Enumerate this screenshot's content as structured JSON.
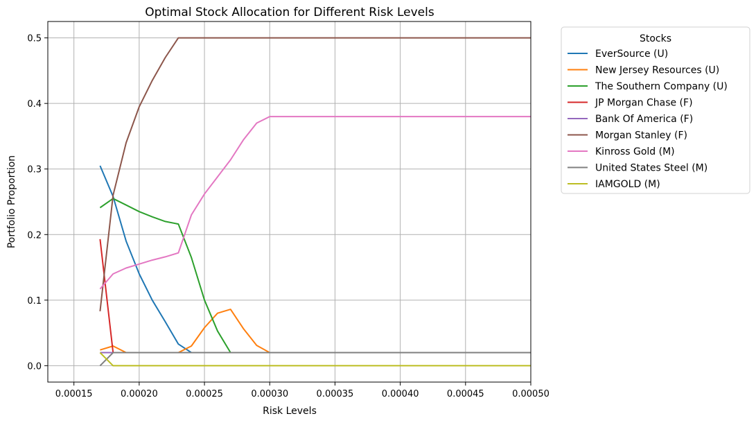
{
  "chart_data": {
    "type": "line",
    "title": "Optimal Stock Allocation for Different Risk Levels",
    "xlabel": "Risk Levels",
    "ylabel": "Portfolio Proportion",
    "xlim": [
      0.00013,
      0.0005
    ],
    "ylim": [
      -0.025,
      0.525
    ],
    "xticks": [
      0.00015,
      0.0002,
      0.00025,
      0.0003,
      0.00035,
      0.0004,
      0.00045,
      0.0005
    ],
    "xtick_labels": [
      "0.00015",
      "0.00020",
      "0.00025",
      "0.00030",
      "0.00035",
      "0.00040",
      "0.00045",
      "0.00050"
    ],
    "yticks": [
      0.0,
      0.1,
      0.2,
      0.3,
      0.4,
      0.5
    ],
    "ytick_labels": [
      "0.0",
      "0.1",
      "0.2",
      "0.3",
      "0.4",
      "0.5"
    ],
    "grid": true,
    "legend_title": "Stocks",
    "legend_position": "outside-right",
    "series": [
      {
        "name": "EverSource (U)",
        "color": "#1f77b4",
        "x": [
          0.00017,
          0.00018,
          0.00019,
          0.0002,
          0.00021,
          0.00022,
          0.00023,
          0.00024,
          0.0005
        ],
        "y": [
          0.305,
          0.258,
          0.19,
          0.14,
          0.1,
          0.067,
          0.033,
          0.02,
          0.02
        ]
      },
      {
        "name": "New Jersey Resources (U)",
        "color": "#ff7f0e",
        "x": [
          0.00017,
          0.00018,
          0.00019,
          0.0002,
          0.00021,
          0.00022,
          0.00023,
          0.00024,
          0.00025,
          0.00026,
          0.00027,
          0.00028,
          0.00029,
          0.0003,
          0.0005
        ],
        "y": [
          0.024,
          0.03,
          0.02,
          0.02,
          0.02,
          0.02,
          0.02,
          0.03,
          0.058,
          0.08,
          0.086,
          0.056,
          0.031,
          0.02,
          0.02
        ]
      },
      {
        "name": "The Southern Company (U)",
        "color": "#2ca02c",
        "x": [
          0.00017,
          0.00018,
          0.00019,
          0.0002,
          0.00021,
          0.00022,
          0.00023,
          0.00024,
          0.00025,
          0.00026,
          0.00027,
          0.0005
        ],
        "y": [
          0.241,
          0.255,
          0.245,
          0.235,
          0.227,
          0.22,
          0.216,
          0.165,
          0.1,
          0.053,
          0.02,
          0.02
        ]
      },
      {
        "name": "JP Morgan Chase (F)",
        "color": "#d62728",
        "x": [
          0.00017,
          0.00018,
          0.0005
        ],
        "y": [
          0.193,
          0.02,
          0.02
        ]
      },
      {
        "name": "Bank Of America (F)",
        "color": "#9467bd",
        "x": [
          0.00017,
          0.00018,
          0.0005
        ],
        "y": [
          0.02,
          0.02,
          0.02
        ]
      },
      {
        "name": "Morgan Stanley (F)",
        "color": "#8c564b",
        "x": [
          0.00017,
          0.00018,
          0.00019,
          0.0002,
          0.00021,
          0.00022,
          0.00023,
          0.0005
        ],
        "y": [
          0.083,
          0.26,
          0.34,
          0.395,
          0.435,
          0.47,
          0.5,
          0.5
        ]
      },
      {
        "name": "Kinross Gold (M)",
        "color": "#e377c2",
        "x": [
          0.00017,
          0.00018,
          0.00019,
          0.0002,
          0.00021,
          0.00022,
          0.00023,
          0.00024,
          0.00025,
          0.00026,
          0.00027,
          0.00028,
          0.00029,
          0.0003,
          0.0005
        ],
        "y": [
          0.117,
          0.14,
          0.149,
          0.155,
          0.161,
          0.166,
          0.172,
          0.23,
          0.262,
          0.288,
          0.314,
          0.345,
          0.37,
          0.38,
          0.38
        ]
      },
      {
        "name": "United States Steel (M)",
        "color": "#7f7f7f",
        "x": [
          0.00017,
          0.00018,
          0.0005
        ],
        "y": [
          0.0,
          0.02,
          0.02
        ]
      },
      {
        "name": "IAMGOLD (M)",
        "color": "#bcbd22",
        "x": [
          0.00017,
          0.00018,
          0.0005
        ],
        "y": [
          0.02,
          0.0,
          0.0
        ]
      }
    ]
  }
}
